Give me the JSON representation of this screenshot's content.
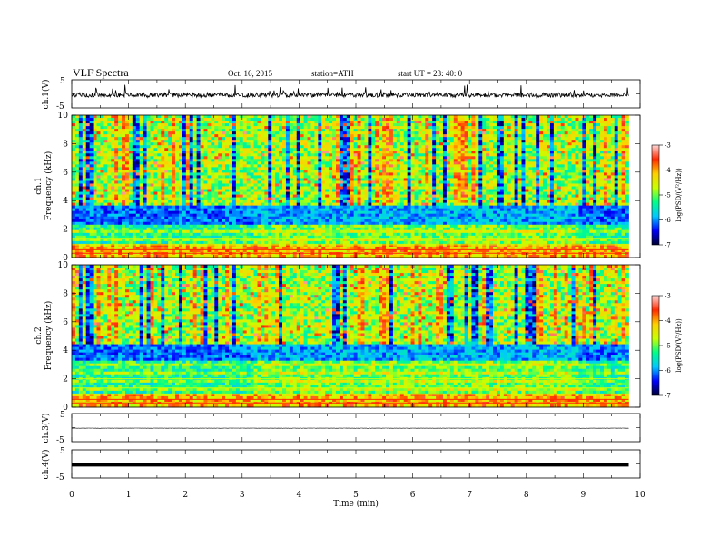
{
  "header": {
    "title": "VLF  Spectra",
    "date": "Oct. 16, 2015",
    "station": "station=ATH",
    "start": "start  UT  =    23: 40: 0"
  },
  "colors": {
    "trace": "#000000",
    "colormap": [
      "#000033",
      "#0000ff",
      "#00c8ff",
      "#00ff88",
      "#c8ff00",
      "#ffd000",
      "#ff2a00",
      "#ffd8d8"
    ]
  },
  "chart_data": [
    {
      "type": "line",
      "panel": "ch1",
      "ylabel": "ch.1(V)",
      "yticks": [
        "5",
        "-5"
      ],
      "ylim": [
        -5,
        5
      ],
      "xlim": [
        0,
        10
      ],
      "mean": -0.4,
      "noise_amplitude": 0.8,
      "data_extent_min": 9.8
    },
    {
      "type": "heatmap",
      "panel": "ch1_spectrogram",
      "ylabel": "ch.1\nFrequency  (kHz)",
      "ylabel_line1": "ch.1",
      "ylabel_line2": "Frequency  (kHz)",
      "yticks": [
        "0",
        "2",
        "4",
        "6",
        "8",
        "10"
      ],
      "ylim": [
        0,
        10
      ],
      "xlim": [
        0,
        10
      ],
      "colorbar_label": "log(PSD/(V²/Hz))",
      "colorbar_ticks": [
        "-3",
        "-4",
        "-5",
        "-6",
        "-7"
      ],
      "colorbar_range": [
        -7,
        -3
      ],
      "noise_floor_khz": 3.6,
      "regime_change_min": [
        3.2,
        8.9
      ],
      "seed": 7
    },
    {
      "type": "heatmap",
      "panel": "ch2_spectrogram",
      "ylabel": "ch.2\nFrequency  (kHz)",
      "ylabel_line1": "ch.2",
      "ylabel_line2": "Frequency  (kHz)",
      "yticks": [
        "0",
        "2",
        "4",
        "6",
        "8",
        "10"
      ],
      "ylim": [
        0,
        10
      ],
      "xlim": [
        0,
        10
      ],
      "colorbar_label": "log(PSD/(V²/Hz))",
      "colorbar_ticks": [
        "-3",
        "-4",
        "-5",
        "-6",
        "-7"
      ],
      "colorbar_range": [
        -7,
        -3
      ],
      "noise_floor_khz": 4.4,
      "regime_change_min": [
        3.2,
        8.9
      ],
      "seed": 19
    },
    {
      "type": "line",
      "panel": "ch3",
      "ylabel": "ch.3(V)",
      "yticks": [
        "5",
        "-5"
      ],
      "ylim": [
        -5,
        5
      ],
      "xlim": [
        0,
        10
      ],
      "mean": -0.2,
      "noise_amplitude": 0.05,
      "data_extent_min": 9.8
    },
    {
      "type": "line",
      "panel": "ch4",
      "ylabel": "ch.4(V)",
      "yticks": [
        "5",
        "-5"
      ],
      "ylim": [
        -5,
        5
      ],
      "xlim": [
        0,
        10
      ],
      "mean": -0.3,
      "noise_amplitude": 0.0,
      "line_weight": "heavy",
      "data_extent_min": 9.8
    }
  ],
  "xaxis": {
    "label": "Time  (min)",
    "ticks": [
      "0",
      "1",
      "2",
      "3",
      "4",
      "5",
      "6",
      "7",
      "8",
      "9",
      "10"
    ],
    "range": [
      0,
      10
    ]
  }
}
